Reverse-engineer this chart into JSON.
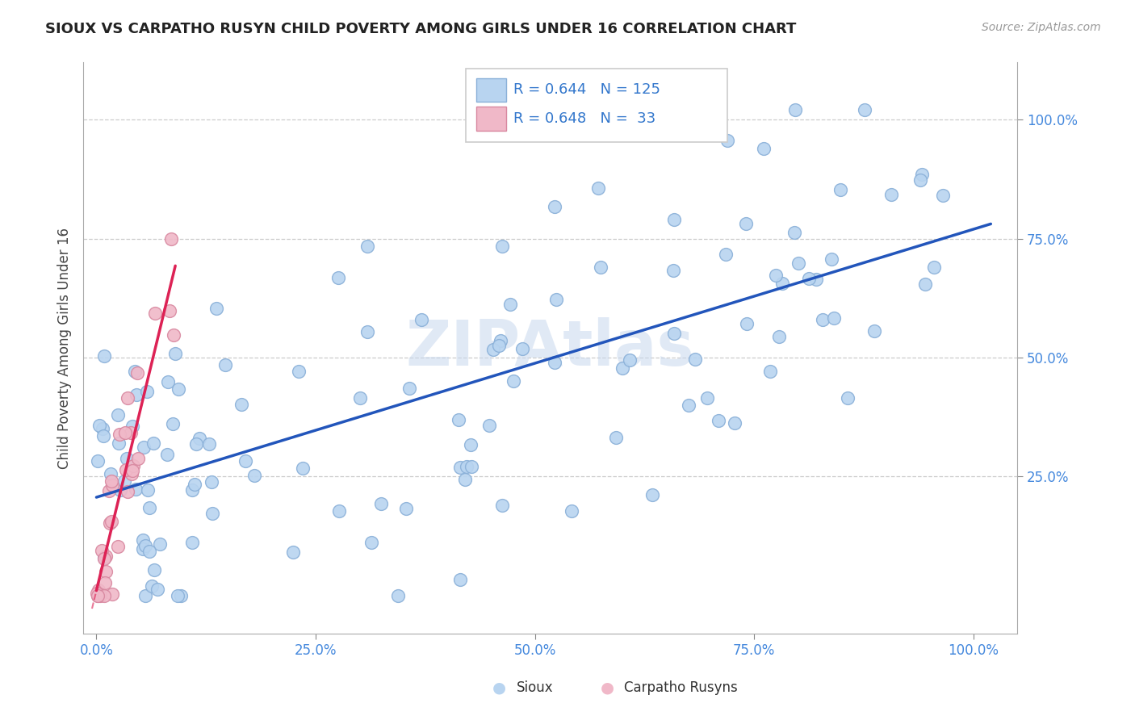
{
  "title": "SIOUX VS CARPATHO RUSYN CHILD POVERTY AMONG GIRLS UNDER 16 CORRELATION CHART",
  "source": "Source: ZipAtlas.com",
  "ylabel": "Child Poverty Among Girls Under 16",
  "blue_color": "#b8d4f0",
  "blue_edge": "#8ab0d8",
  "pink_color": "#f0b8c8",
  "pink_edge": "#d888a0",
  "regression_blue": "#2255bb",
  "regression_pink": "#dd2255",
  "legend_R_blue": "0.644",
  "legend_N_blue": "125",
  "legend_R_pink": "0.648",
  "legend_N_pink": "33",
  "legend_label_blue": "Sioux",
  "legend_label_pink": "Carpatho Rusyns",
  "watermark": "ZIPAtlas"
}
